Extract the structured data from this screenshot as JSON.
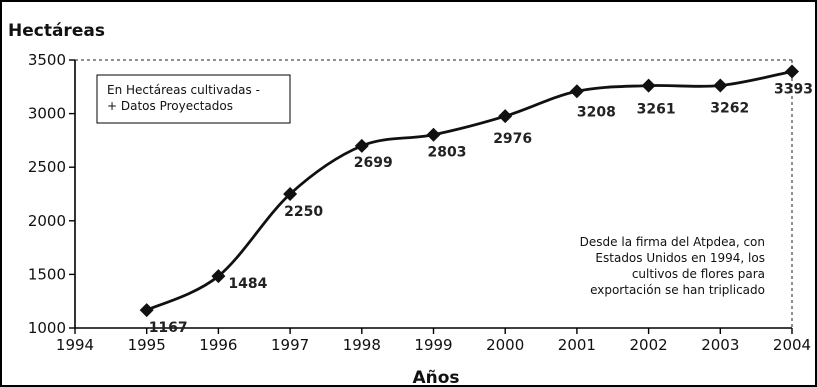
{
  "chart_data": {
    "type": "line",
    "ylabel": "Hectáreas",
    "xlabel": "Años",
    "x_ticks": [
      1994,
      1995,
      1996,
      1997,
      1998,
      1999,
      2000,
      2001,
      2002,
      2003,
      2004
    ],
    "y_ticks": [
      1000,
      1500,
      2000,
      2500,
      3000,
      3500
    ],
    "xlim": [
      1994,
      2004
    ],
    "ylim": [
      1000,
      3500
    ],
    "x": [
      1995,
      1996,
      1997,
      1998,
      1999,
      2000,
      2001,
      2002,
      2003,
      2004
    ],
    "values": [
      1167,
      1484,
      2250,
      2699,
      2803,
      2976,
      3208,
      3261,
      3262,
      3393
    ],
    "data_labels": [
      "1167",
      "1484",
      "2250",
      "2699",
      "2803",
      "2976",
      "3208",
      "3261",
      "3262",
      "3393"
    ],
    "legend_lines": [
      "En Hectáreas cultivadas -",
      "+ Datos Proyectados"
    ],
    "annotation_lines": [
      "Desde la firma del Atpdea, con",
      "Estados Unidos en 1994, los",
      "cultivos de flores para",
      "exportación se han triplicado"
    ],
    "grid": false,
    "legend_position": "top-left",
    "marker": "diamond",
    "colors": {
      "line": "#111111",
      "background": "#ffffff"
    }
  }
}
